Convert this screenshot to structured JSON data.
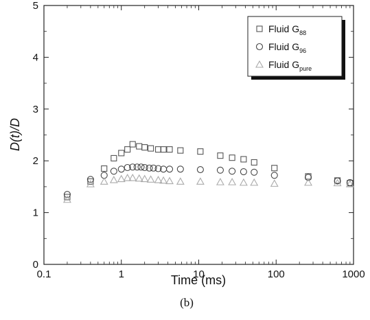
{
  "chart_data": {
    "type": "scatter",
    "x_scale": "log",
    "xlim": [
      0.1,
      1000
    ],
    "ylim": [
      0,
      5
    ],
    "xlabel": "Time (ms)",
    "ylabel": "D(t)/D",
    "caption": "(b)",
    "x_ticks": [
      {
        "value": 0.1,
        "label": "0.1"
      },
      {
        "value": 1,
        "label": "1"
      },
      {
        "value": 10,
        "label": "10"
      },
      {
        "value": 100,
        "label": "100"
      },
      {
        "value": 1000,
        "label": "1000"
      }
    ],
    "y_ticks": [
      {
        "value": 0,
        "label": "0"
      },
      {
        "value": 1,
        "label": "1"
      },
      {
        "value": 2,
        "label": "2"
      },
      {
        "value": 3,
        "label": "3"
      },
      {
        "value": 4,
        "label": "4"
      },
      {
        "value": 5,
        "label": "5"
      }
    ],
    "legend_position": "top-right",
    "series": [
      {
        "name": "Fluid G",
        "subscript": "88",
        "marker": "square",
        "color": "#555555",
        "points": [
          [
            0.2,
            1.3
          ],
          [
            0.4,
            1.6
          ],
          [
            0.6,
            1.85
          ],
          [
            0.8,
            2.05
          ],
          [
            1.0,
            2.15
          ],
          [
            1.2,
            2.22
          ],
          [
            1.4,
            2.32
          ],
          [
            1.7,
            2.28
          ],
          [
            2.0,
            2.26
          ],
          [
            2.4,
            2.24
          ],
          [
            3.0,
            2.22
          ],
          [
            3.5,
            2.22
          ],
          [
            4.2,
            2.22
          ],
          [
            5.8,
            2.2
          ],
          [
            10.5,
            2.18
          ],
          [
            19,
            2.1
          ],
          [
            27,
            2.06
          ],
          [
            38,
            2.03
          ],
          [
            52,
            1.97
          ],
          [
            95,
            1.86
          ],
          [
            260,
            1.7
          ],
          [
            620,
            1.62
          ],
          [
            900,
            1.57
          ]
        ]
      },
      {
        "name": "Fluid G",
        "subscript": "96",
        "marker": "circle",
        "color": "#444444",
        "points": [
          [
            0.2,
            1.35
          ],
          [
            0.4,
            1.64
          ],
          [
            0.6,
            1.72
          ],
          [
            0.8,
            1.8
          ],
          [
            1.0,
            1.84
          ],
          [
            1.2,
            1.87
          ],
          [
            1.4,
            1.88
          ],
          [
            1.6,
            1.88
          ],
          [
            1.8,
            1.88
          ],
          [
            2.0,
            1.87
          ],
          [
            2.3,
            1.86
          ],
          [
            2.6,
            1.86
          ],
          [
            3.0,
            1.85
          ],
          [
            3.5,
            1.84
          ],
          [
            4.2,
            1.84
          ],
          [
            5.8,
            1.84
          ],
          [
            10.5,
            1.83
          ],
          [
            19,
            1.82
          ],
          [
            27,
            1.8
          ],
          [
            38,
            1.79
          ],
          [
            52,
            1.78
          ],
          [
            95,
            1.72
          ],
          [
            260,
            1.68
          ],
          [
            620,
            1.61
          ],
          [
            900,
            1.58
          ]
        ]
      },
      {
        "name": "Fluid G",
        "subscript": "pure",
        "marker": "triangle",
        "color": "#aaaaaa",
        "points": [
          [
            0.2,
            1.25
          ],
          [
            0.4,
            1.55
          ],
          [
            0.6,
            1.6
          ],
          [
            0.8,
            1.63
          ],
          [
            1.0,
            1.65
          ],
          [
            1.2,
            1.67
          ],
          [
            1.4,
            1.67
          ],
          [
            1.7,
            1.66
          ],
          [
            2.0,
            1.65
          ],
          [
            2.4,
            1.64
          ],
          [
            3.0,
            1.63
          ],
          [
            3.5,
            1.62
          ],
          [
            4.2,
            1.61
          ],
          [
            5.8,
            1.6
          ],
          [
            10.5,
            1.6
          ],
          [
            19,
            1.59
          ],
          [
            27,
            1.59
          ],
          [
            38,
            1.58
          ],
          [
            52,
            1.58
          ],
          [
            95,
            1.56
          ],
          [
            260,
            1.58
          ],
          [
            620,
            1.57
          ],
          [
            900,
            1.55
          ]
        ]
      }
    ]
  }
}
